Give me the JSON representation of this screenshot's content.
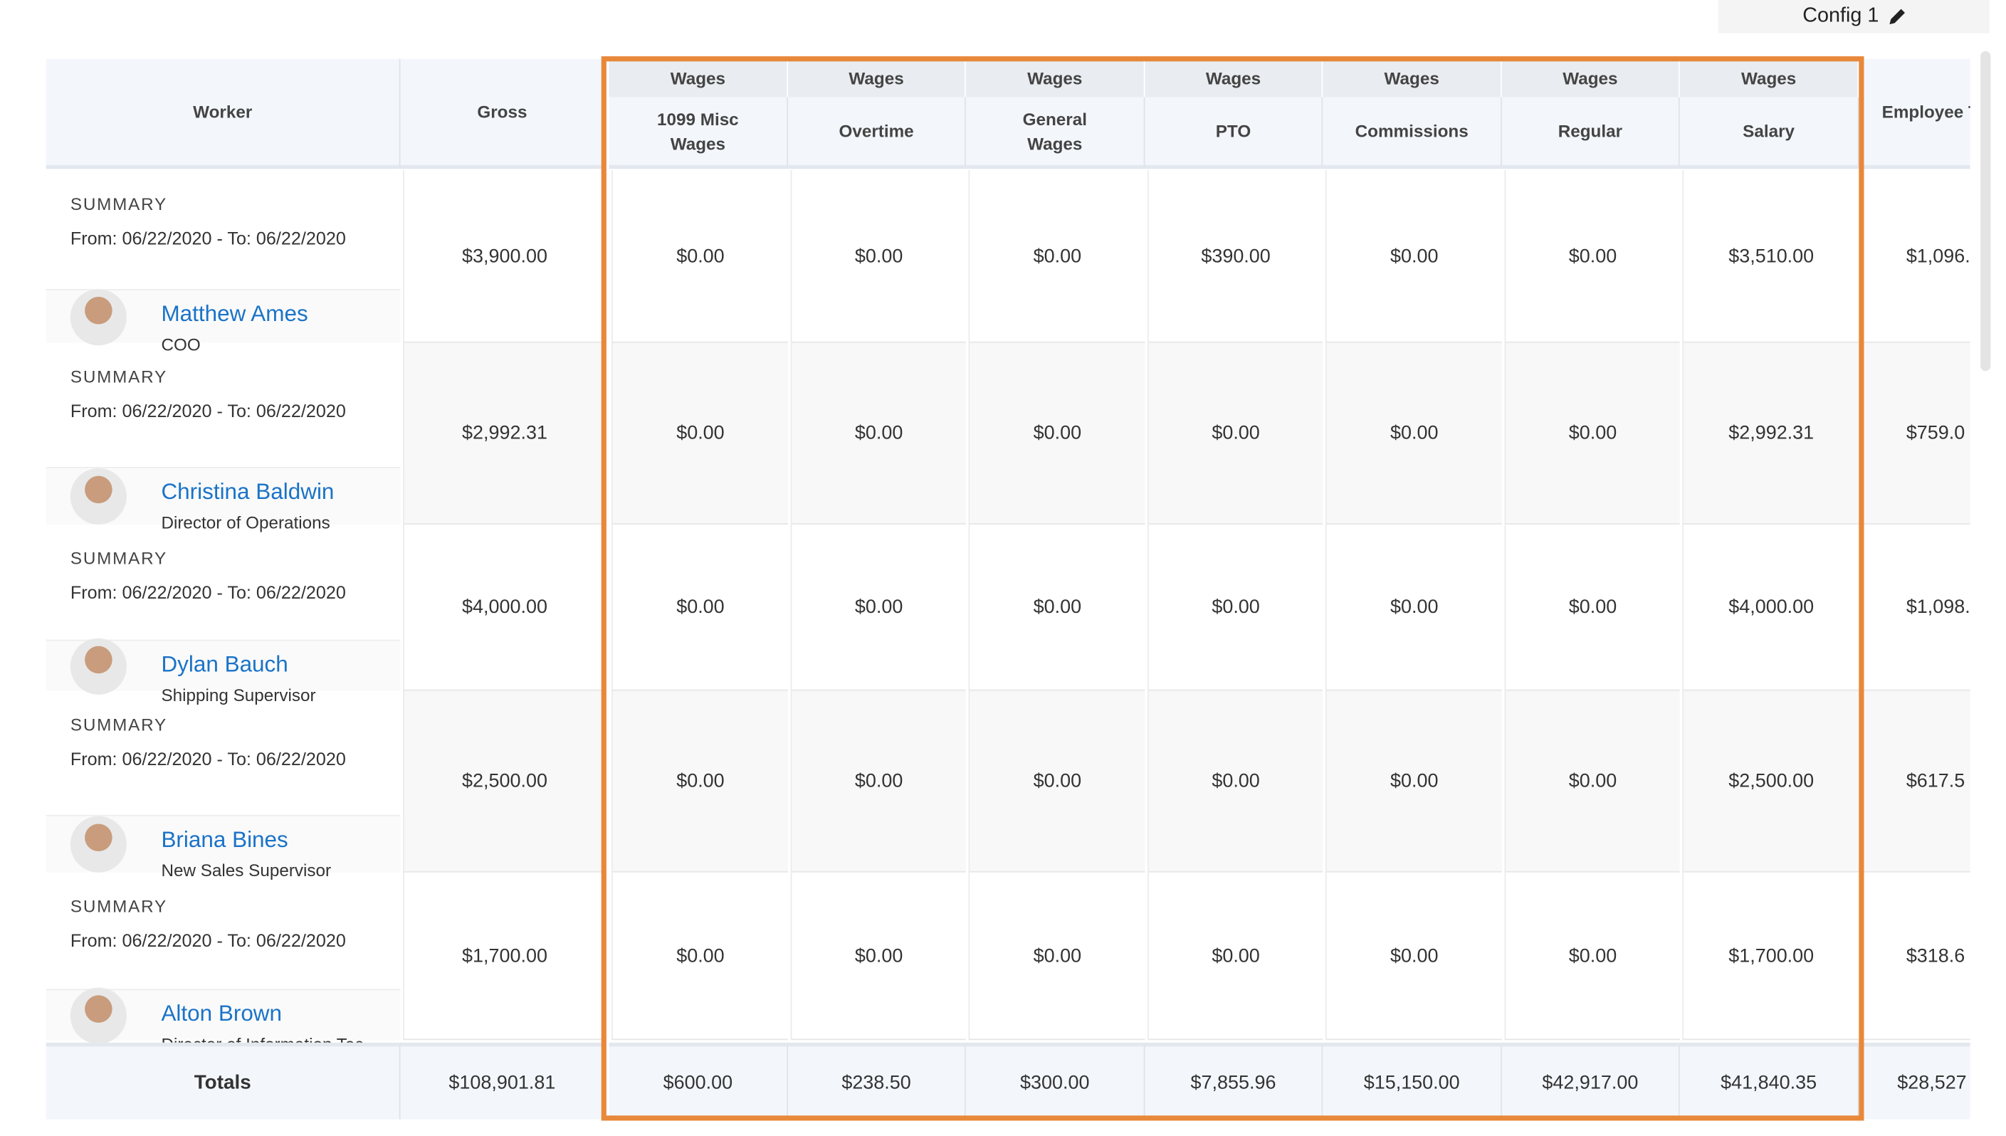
{
  "toolbar": {
    "config_button": "Config 1"
  },
  "table": {
    "columns": [
      {
        "label": "Worker"
      },
      {
        "label": "Gross"
      },
      {
        "group": "Wages",
        "label": "1099 Misc Wages"
      },
      {
        "group": "Wages",
        "label": "Overtime"
      },
      {
        "group": "Wages",
        "label": "General Wages"
      },
      {
        "group": "Wages",
        "label": "PTO"
      },
      {
        "group": "Wages",
        "label": "Commissions"
      },
      {
        "group": "Wages",
        "label": "Regular"
      },
      {
        "group": "Wages",
        "label": "Salary"
      },
      {
        "label": "Employee Total"
      }
    ],
    "rows": [
      {
        "summary": "SUMMARY",
        "period": "From: 06/22/2020 - To: 06/22/2020",
        "name": "Matthew Ames",
        "title": "COO",
        "values": [
          "$3,900.00",
          "$0.00",
          "$0.00",
          "$0.00",
          "$390.00",
          "$0.00",
          "$0.00",
          "$3,510.00",
          "$1,096."
        ]
      },
      {
        "summary": "SUMMARY",
        "period": "From: 06/22/2020 - To: 06/22/2020",
        "name": "Christina Baldwin",
        "title": "Director of Operations",
        "values": [
          "$2,992.31",
          "$0.00",
          "$0.00",
          "$0.00",
          "$0.00",
          "$0.00",
          "$0.00",
          "$2,992.31",
          "$759.0"
        ]
      },
      {
        "summary": "SUMMARY",
        "period": "From: 06/22/2020 - To: 06/22/2020",
        "name": "Dylan Bauch",
        "title": "Shipping Supervisor",
        "values": [
          "$4,000.00",
          "$0.00",
          "$0.00",
          "$0.00",
          "$0.00",
          "$0.00",
          "$0.00",
          "$4,000.00",
          "$1,098."
        ]
      },
      {
        "summary": "SUMMARY",
        "period": "From: 06/22/2020 - To: 06/22/2020",
        "name": "Briana Bines",
        "title": "New Sales Supervisor",
        "values": [
          "$2,500.00",
          "$0.00",
          "$0.00",
          "$0.00",
          "$0.00",
          "$0.00",
          "$0.00",
          "$2,500.00",
          "$617.5"
        ]
      },
      {
        "summary": "SUMMARY",
        "period": "From: 06/22/2020 - To: 06/22/2020",
        "name": "Alton Brown",
        "title": "Director of Information Tec...",
        "values": [
          "$1,700.00",
          "$0.00",
          "$0.00",
          "$0.00",
          "$0.00",
          "$0.00",
          "$0.00",
          "$1,700.00",
          "$318.6"
        ]
      }
    ],
    "totals": {
      "label": "Totals",
      "values": [
        "$108,901.81",
        "$600.00",
        "$238.50",
        "$300.00",
        "$7,855.96",
        "$15,150.00",
        "$42,917.00",
        "$41,840.35",
        "$28,527"
      ]
    }
  }
}
